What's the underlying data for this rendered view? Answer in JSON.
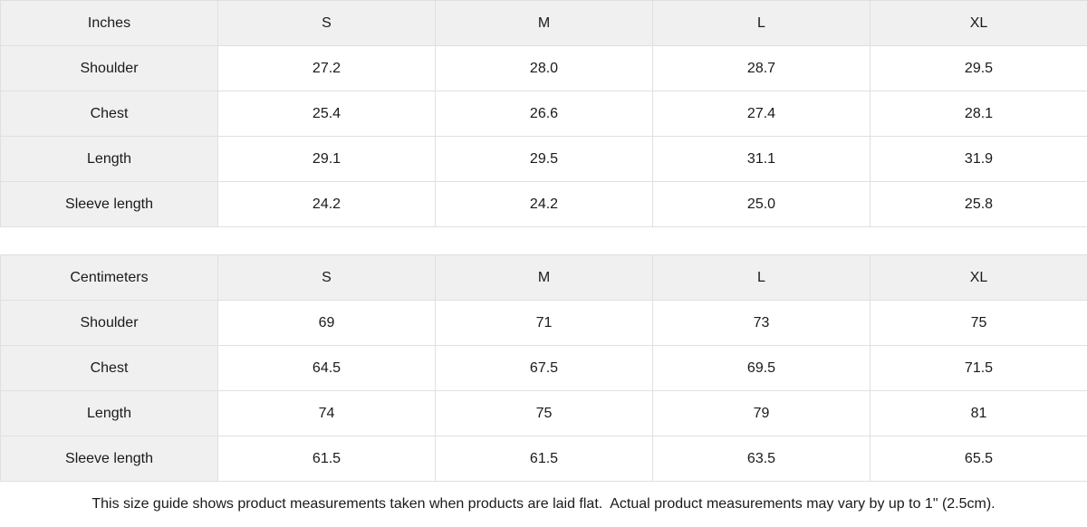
{
  "colors": {
    "header_bg": "#f0f0f0",
    "label_column_bg": "#f0f0f0",
    "cell_bg": "#ffffff",
    "border": "#e0e0e0",
    "text": "#1a1a1a"
  },
  "tables": [
    {
      "unit_label": "Inches",
      "columns": [
        "S",
        "M",
        "L",
        "XL"
      ],
      "rows": [
        {
          "label": "Shoulder",
          "values": [
            "27.2",
            "28.0",
            "28.7",
            "29.5"
          ]
        },
        {
          "label": "Chest",
          "values": [
            "25.4",
            "26.6",
            "27.4",
            "28.1"
          ]
        },
        {
          "label": "Length",
          "values": [
            "29.1",
            "29.5",
            "31.1",
            "31.9"
          ]
        },
        {
          "label": "Sleeve length",
          "values": [
            "24.2",
            "24.2",
            "25.0",
            "25.8"
          ]
        }
      ]
    },
    {
      "unit_label": "Centimeters",
      "columns": [
        "S",
        "M",
        "L",
        "XL"
      ],
      "rows": [
        {
          "label": "Shoulder",
          "values": [
            "69",
            "71",
            "73",
            "75"
          ]
        },
        {
          "label": "Chest",
          "values": [
            "64.5",
            "67.5",
            "69.5",
            "71.5"
          ]
        },
        {
          "label": "Length",
          "values": [
            "74",
            "75",
            "79",
            "81"
          ]
        },
        {
          "label": "Sleeve length",
          "values": [
            "61.5",
            "61.5",
            "63.5",
            "65.5"
          ]
        }
      ]
    }
  ],
  "footer": {
    "note": "This size guide shows product measurements taken when products are laid flat.  Actual product measurements may vary by up to 1\" (2.5cm)."
  }
}
